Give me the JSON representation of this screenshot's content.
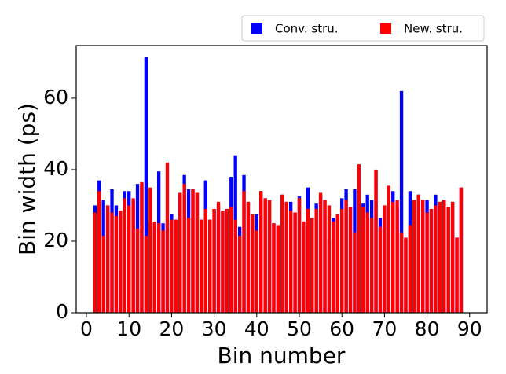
{
  "chart_data": {
    "type": "bar",
    "xlabel": "Bin number",
    "ylabel": "Bin width (ps)",
    "x": [
      2,
      3,
      4,
      5,
      6,
      7,
      8,
      9,
      10,
      11,
      12,
      13,
      14,
      15,
      16,
      17,
      18,
      19,
      20,
      21,
      22,
      23,
      24,
      25,
      26,
      27,
      28,
      29,
      30,
      31,
      32,
      33,
      34,
      35,
      36,
      37,
      38,
      39,
      40,
      41,
      42,
      43,
      44,
      45,
      46,
      47,
      48,
      49,
      50,
      51,
      52,
      53,
      54,
      55,
      56,
      57,
      58,
      59,
      60,
      61,
      62,
      63,
      64,
      65,
      66,
      67,
      68,
      69,
      70,
      71,
      72,
      73,
      74,
      75,
      76,
      77,
      78,
      79,
      80,
      81,
      82,
      83,
      84,
      85,
      86,
      87,
      88
    ],
    "series": [
      {
        "name": "Conv. stru.",
        "color": "#0000ff",
        "values": [
          30,
          37,
          31.5,
          30,
          34.5,
          30,
          28,
          34,
          34,
          31.5,
          36,
          36,
          71.5,
          25,
          25,
          39.5,
          25,
          25,
          27.5,
          26,
          33,
          38.5,
          34.5,
          34.5,
          33.5,
          26,
          37,
          26,
          29,
          30,
          28.5,
          29,
          38,
          44,
          24,
          38.5,
          31,
          27.5,
          27.5,
          34,
          32,
          31.5,
          25,
          24.5,
          33,
          31,
          31,
          28,
          32.5,
          25.5,
          35,
          26.5,
          30.5,
          33,
          31.5,
          20.5,
          26.5,
          27.5,
          32,
          34.5,
          29.5,
          34.5,
          41,
          30.5,
          33,
          31.5,
          40,
          26.5,
          30,
          35,
          34,
          29,
          62,
          20.5,
          34,
          31.5,
          33,
          31.5,
          31.5,
          29,
          33,
          31,
          31.5,
          29.5,
          31,
          21,
          35
        ]
      },
      {
        "name": "New. stru.",
        "color": "#ff0000",
        "values": [
          28,
          34,
          21.5,
          30,
          28,
          27,
          28.5,
          32,
          30,
          32,
          23.5,
          36.5,
          21.5,
          35,
          25.5,
          25,
          23,
          42,
          26,
          26,
          33.5,
          36,
          26.5,
          34.5,
          33.5,
          26,
          29,
          26,
          29,
          31,
          28.5,
          29,
          29.5,
          26,
          21.5,
          34,
          31,
          27.5,
          23,
          34,
          32,
          31.5,
          25,
          24.5,
          33,
          31,
          28.5,
          28,
          32,
          25.5,
          29,
          26.5,
          29,
          33.5,
          31.5,
          30,
          25.5,
          27.5,
          29,
          31.5,
          29.5,
          22.5,
          41.5,
          29.5,
          28,
          26.5,
          40,
          24,
          30,
          35.5,
          31,
          31.5,
          22.5,
          21,
          24.5,
          31.5,
          33,
          31.5,
          28,
          29,
          30,
          31,
          31.5,
          29.5,
          31,
          21,
          35
        ]
      }
    ],
    "bar_width": 0.8,
    "xlim": [
      -2.4,
      94.1
    ],
    "ylim": [
      0,
      74.7
    ],
    "xticks": [
      0,
      10,
      20,
      30,
      40,
      50,
      60,
      70,
      80,
      90
    ],
    "yticks": [
      0,
      20,
      40,
      60
    ]
  }
}
